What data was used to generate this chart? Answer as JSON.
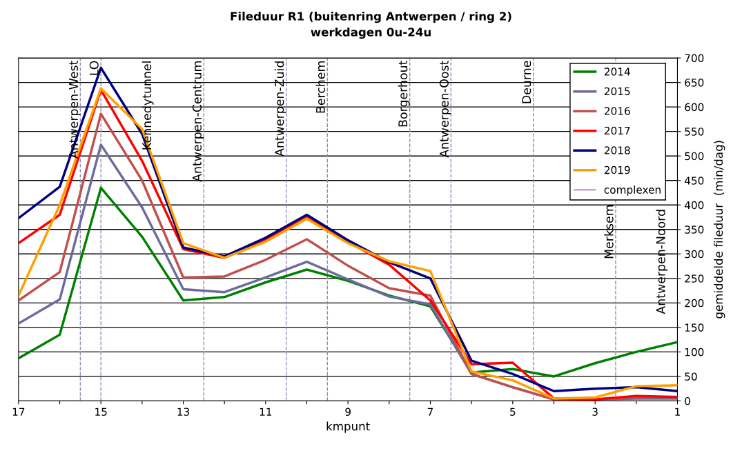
{
  "chart_data": {
    "type": "line",
    "title": "Fileduur R1 (buitenring Antwerpen / ring 2)",
    "subtitle": "werkdagen 0u-24u",
    "xlabel": "kmpunt",
    "ylabel": "gemiddelde fileduur  (min/dag)",
    "x": [
      17,
      16,
      15,
      14,
      13,
      12,
      11,
      10,
      9,
      8,
      7,
      6,
      5,
      4,
      3,
      2,
      1
    ],
    "series": [
      {
        "name": "2014",
        "color": "#008000",
        "values": [
          87,
          135,
          435,
          335,
          205,
          212,
          242,
          268,
          245,
          215,
          193,
          58,
          65,
          50,
          77,
          100,
          120
        ]
      },
      {
        "name": "2015",
        "color": "#6b6b9e",
        "values": [
          158,
          207,
          523,
          395,
          228,
          222,
          252,
          284,
          248,
          213,
          197,
          55,
          28,
          3,
          3,
          5,
          5
        ]
      },
      {
        "name": "2016",
        "color": "#c0504d",
        "values": [
          205,
          263,
          586,
          450,
          252,
          254,
          288,
          330,
          276,
          230,
          215,
          55,
          28,
          3,
          3,
          8,
          8
        ]
      },
      {
        "name": "2017",
        "color": "#ff0000",
        "values": [
          322,
          380,
          635,
          490,
          310,
          292,
          330,
          375,
          325,
          278,
          205,
          75,
          78,
          5,
          3,
          10,
          8
        ]
      },
      {
        "name": "2018",
        "color": "#000080",
        "values": [
          373,
          437,
          680,
          545,
          313,
          295,
          333,
          380,
          328,
          283,
          250,
          82,
          55,
          20,
          25,
          28,
          20
        ]
      },
      {
        "name": "2019",
        "color": "#ffa000",
        "values": [
          215,
          400,
          638,
          555,
          322,
          292,
          325,
          372,
          322,
          285,
          265,
          60,
          42,
          5,
          7,
          30,
          32
        ]
      }
    ],
    "xlim": [
      17,
      1
    ],
    "ylim": [
      0,
      700
    ],
    "xticks": [
      17,
      {
        "value": 16,
        "label": null
      },
      15,
      {
        "value": 14,
        "label": null
      },
      13,
      {
        "value": 12,
        "label": null
      },
      11,
      {
        "value": 10,
        "label": null
      },
      9,
      {
        "value": 8,
        "label": null
      },
      7,
      {
        "value": 6,
        "label": null
      },
      5,
      {
        "value": 4,
        "label": null
      },
      3,
      {
        "value": 2,
        "label": null
      },
      1
    ],
    "yticks": [
      0,
      50,
      100,
      150,
      200,
      250,
      300,
      350,
      400,
      450,
      500,
      550,
      600,
      650,
      700
    ],
    "ref_lines": [
      {
        "axis": "x",
        "value": 15.5,
        "label": "Antwerpen-West",
        "color": "#8c8cb4",
        "line_style": "dashed"
      },
      {
        "axis": "x",
        "value": 15,
        "label": "LO",
        "color": "#8c8cb4",
        "line_style": "dashed"
      },
      {
        "axis": "x",
        "value": 12.5,
        "label": "Antwerpen-Centrum",
        "color": "#8c8cb4",
        "line_style": "dashed"
      },
      {
        "axis": "x",
        "value": 10.5,
        "label": "Antwerpen-Zuid",
        "color": "#8c8cb4",
        "line_style": "dashed"
      },
      {
        "axis": "x",
        "value": 9.5,
        "label": "Berchem",
        "color": "#8c8cb4",
        "line_style": "dashed"
      },
      {
        "axis": "x",
        "value": 7.5,
        "label": "Borgerhout",
        "color": "#8c8cb4",
        "line_style": "dashed"
      },
      {
        "axis": "x",
        "value": 6.5,
        "label": "Antwerpen-Oost",
        "color": "#8c8cb4",
        "line_style": "dashed"
      },
      {
        "axis": "x",
        "value": 4.5,
        "label": "Deurne",
        "color": "#8c8cb4",
        "line_style": "dashed"
      },
      {
        "axis": "x",
        "value": 2.5,
        "label": "Merksem",
        "color": "#8c8cb4",
        "line_style": "dashed"
      }
    ],
    "annotations": [
      "Kennedytunnel",
      "Antwerpen-Noord",
      "complexen"
    ],
    "grid": "y",
    "legend": "top right",
    "marker": "none",
    "line_style": "solid"
  }
}
